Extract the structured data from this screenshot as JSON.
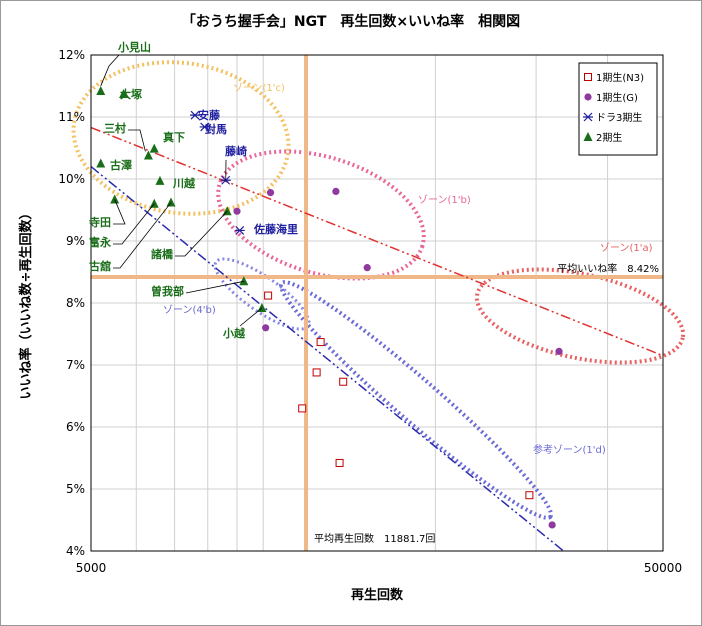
{
  "chart_data": {
    "type": "scatter",
    "title": "「おうち握手会」NGT　再生回数×いいね率　相関図",
    "xlabel": "再生回数",
    "ylabel": "いいね率（いいね数÷再生回数）",
    "xscale": "log",
    "xlim": [
      5000,
      50000
    ],
    "ylim": [
      4,
      12
    ],
    "x_tick_labels": [
      "5000",
      "50000"
    ],
    "y_tick_labels": [
      "4%",
      "5%",
      "6%",
      "7%",
      "8%",
      "9%",
      "10%",
      "11%",
      "12%"
    ],
    "grid": true,
    "legend_position": "top-right",
    "series": [
      {
        "name": "1期生(N3)",
        "marker": "open-square",
        "color": "#c00000",
        "points": [
          [
            10200,
            8.12
          ],
          [
            11700,
            6.3
          ],
          [
            12400,
            6.88
          ],
          [
            12600,
            7.37
          ],
          [
            13600,
            5.42
          ],
          [
            13800,
            6.73
          ],
          [
            29200,
            4.9
          ]
        ]
      },
      {
        "name": "1期生(G)",
        "marker": "circle",
        "color": "#8e3a9e",
        "points": [
          [
            9000,
            9.48
          ],
          [
            10100,
            7.6
          ],
          [
            10300,
            9.78
          ],
          [
            13400,
            9.8
          ],
          [
            15200,
            8.57
          ],
          [
            32000,
            4.42
          ],
          [
            32900,
            7.22
          ]
        ]
      },
      {
        "name": "ドラ3期生",
        "marker": "star",
        "color": "#1f1f9f",
        "points": [
          [
            7600,
            11.03
          ],
          [
            7900,
            10.84
          ],
          [
            8600,
            9.98
          ],
          [
            9100,
            9.17
          ]
        ]
      },
      {
        "name": "2期生",
        "marker": "triangle",
        "color": "#1a6e1a",
        "points": [
          [
            5200,
            11.42
          ],
          [
            5700,
            11.37
          ],
          [
            6300,
            10.38
          ],
          [
            6450,
            10.49
          ],
          [
            5200,
            10.25
          ],
          [
            6600,
            9.97
          ],
          [
            5500,
            9.67
          ],
          [
            6450,
            9.6
          ],
          [
            6900,
            9.62
          ],
          [
            8650,
            9.48
          ],
          [
            9250,
            8.35
          ],
          [
            9950,
            7.92
          ]
        ]
      }
    ],
    "point_labels": [
      {
        "text": "小見山",
        "series": "2期生"
      },
      {
        "text": "大塚",
        "series": "2期生"
      },
      {
        "text": "三村",
        "series": "2期生"
      },
      {
        "text": "真下",
        "series": "2期生"
      },
      {
        "text": "古澤",
        "series": "2期生"
      },
      {
        "text": "川越",
        "series": "2期生"
      },
      {
        "text": "寺田",
        "series": "2期生"
      },
      {
        "text": "富永",
        "series": "2期生"
      },
      {
        "text": "古舘",
        "series": "2期生"
      },
      {
        "text": "諸橋",
        "series": "2期生"
      },
      {
        "text": "曽我部",
        "series": "2期生"
      },
      {
        "text": "小越",
        "series": "2期生"
      },
      {
        "text": "安藤",
        "series": "ドラ3期生"
      },
      {
        "text": "對馬",
        "series": "ドラ3期生"
      },
      {
        "text": "藤崎",
        "series": "ドラ3期生"
      },
      {
        "text": "佐藤海里",
        "series": "ドラ3期生"
      }
    ],
    "average_lines": {
      "x": {
        "value": 11881.7,
        "label": "平均再生回数　11881.7回"
      },
      "y": {
        "value": 8.42,
        "label": "平均いいね率　8.42%"
      }
    },
    "trend_lines": [
      {
        "name": "red",
        "color": "#e03030",
        "from": [
          5000,
          10.83
        ],
        "to": [
          50000,
          7.15
        ]
      },
      {
        "name": "blue",
        "color": "#2a2ab0",
        "from": [
          5000,
          10.2
        ],
        "to": [
          33500,
          4.0
        ]
      }
    ],
    "zones": [
      {
        "label": "ゾーン(1'c)",
        "color": "#f4c060"
      },
      {
        "label": "ゾーン(1'b)",
        "color": "#e8679a"
      },
      {
        "label": "ゾーン(1'a)",
        "color": "#e86060"
      },
      {
        "label": "ゾーン(4'b)",
        "color": "#8888e0"
      },
      {
        "label": "参考ゾーン(1'd)",
        "color": "#6b6bd8"
      }
    ]
  }
}
